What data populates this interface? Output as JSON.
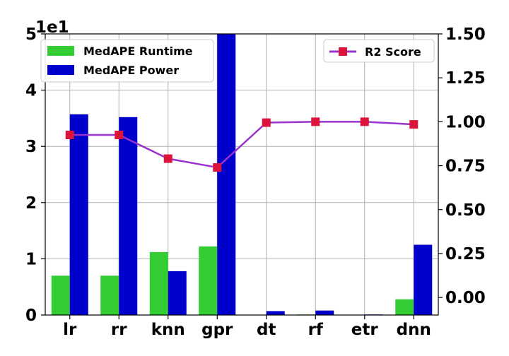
{
  "chart_data": {
    "type": "bar",
    "categories": [
      "lr",
      "rr",
      "knn",
      "gpr",
      "dt",
      "rf",
      "etr",
      "dnn"
    ],
    "series": [
      {
        "name": "MedAPE Runtime",
        "kind": "bar",
        "axis": "left",
        "color": "#33cc33",
        "values": [
          0.7,
          0.7,
          1.12,
          1.22,
          0.0,
          0.01,
          0.0,
          0.28
        ]
      },
      {
        "name": "MedAPE Power",
        "kind": "bar",
        "axis": "left",
        "color": "#0000cc",
        "values": [
          3.57,
          3.52,
          0.78,
          5.0,
          0.07,
          0.08,
          0.01,
          1.25
        ]
      },
      {
        "name": "R2 Score",
        "kind": "line",
        "axis": "right",
        "color": "#9933cc",
        "marker_color": "#dc143c",
        "values": [
          0.925,
          0.925,
          0.79,
          0.74,
          0.995,
          1.0,
          1.0,
          0.985
        ]
      }
    ],
    "y_left": {
      "ylim": [
        0,
        5
      ],
      "ticks": [
        "0",
        "1",
        "2",
        "3",
        "4",
        "5"
      ],
      "offset_text": "1e1"
    },
    "y_right": {
      "ylim": [
        -0.1,
        1.5
      ],
      "ticks": [
        "0.00",
        "0.25",
        "0.50",
        "0.75",
        "1.00",
        "1.25",
        "1.50"
      ],
      "tick_values": [
        0,
        0.25,
        0.5,
        0.75,
        1.0,
        1.25,
        1.5
      ]
    },
    "grid": true,
    "legend_left": "upper-left",
    "legend_right": "upper-right"
  }
}
